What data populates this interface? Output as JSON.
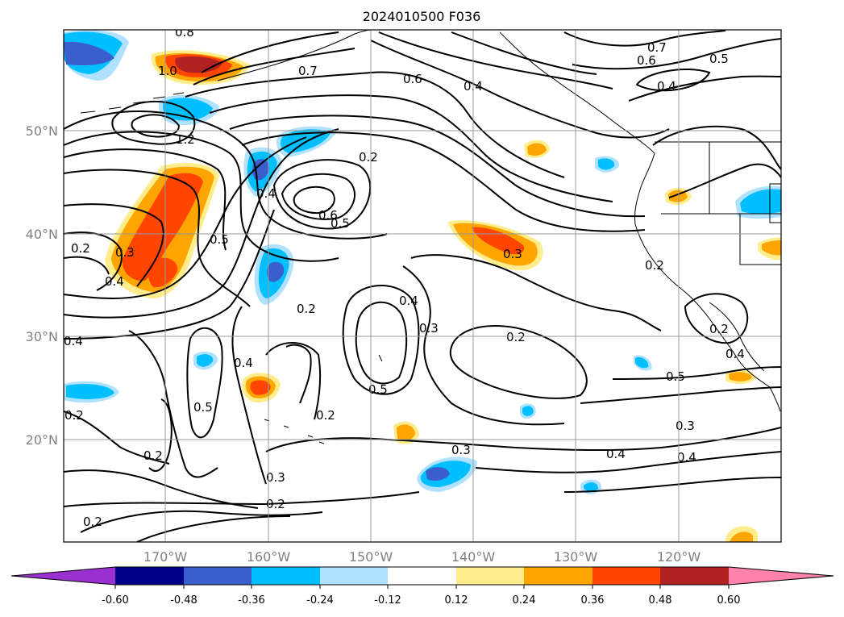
{
  "title": "2024010500 F036",
  "map": {
    "lat_labels": [
      "50°N",
      "40°N",
      "30°N",
      "20°N"
    ],
    "lon_labels": [
      "170°W",
      "160°W",
      "150°W",
      "140°W",
      "130°W",
      "120°W"
    ],
    "grid": true
  },
  "contour_labels": [
    "0.8",
    "1.0",
    "0.7",
    "0.6",
    "0.4",
    "0.7",
    "0.6",
    "0.5",
    "0.4",
    "1.2",
    "0.2",
    "0.4",
    "0.6",
    "0.5",
    "0.5",
    "0.3",
    "0.4",
    "0.2",
    "0.2",
    "0.4",
    "0.3",
    "0.2",
    "0.3",
    "0.2",
    "0.4",
    "0.5",
    "0.5",
    "0.2",
    "0.2",
    "0.3",
    "0.2",
    "0.3",
    "0.4",
    "0.4",
    "0.3",
    "0.2",
    "0.2",
    "0.4",
    "0.5",
    "0.4",
    "0.2"
  ],
  "colorbar": {
    "ticks": [
      "-0.60",
      "-0.48",
      "-0.36",
      "-0.24",
      "-0.12",
      "0.12",
      "0.24",
      "0.36",
      "0.48",
      "0.60"
    ],
    "colors": [
      "#9b30d0",
      "#00008b",
      "#3a5fcd",
      "#00bfff",
      "#b0e2ff",
      "#ffffff",
      "#ffec8b",
      "#ffa500",
      "#ff4500",
      "#b22222",
      "#ff82ab"
    ]
  }
}
